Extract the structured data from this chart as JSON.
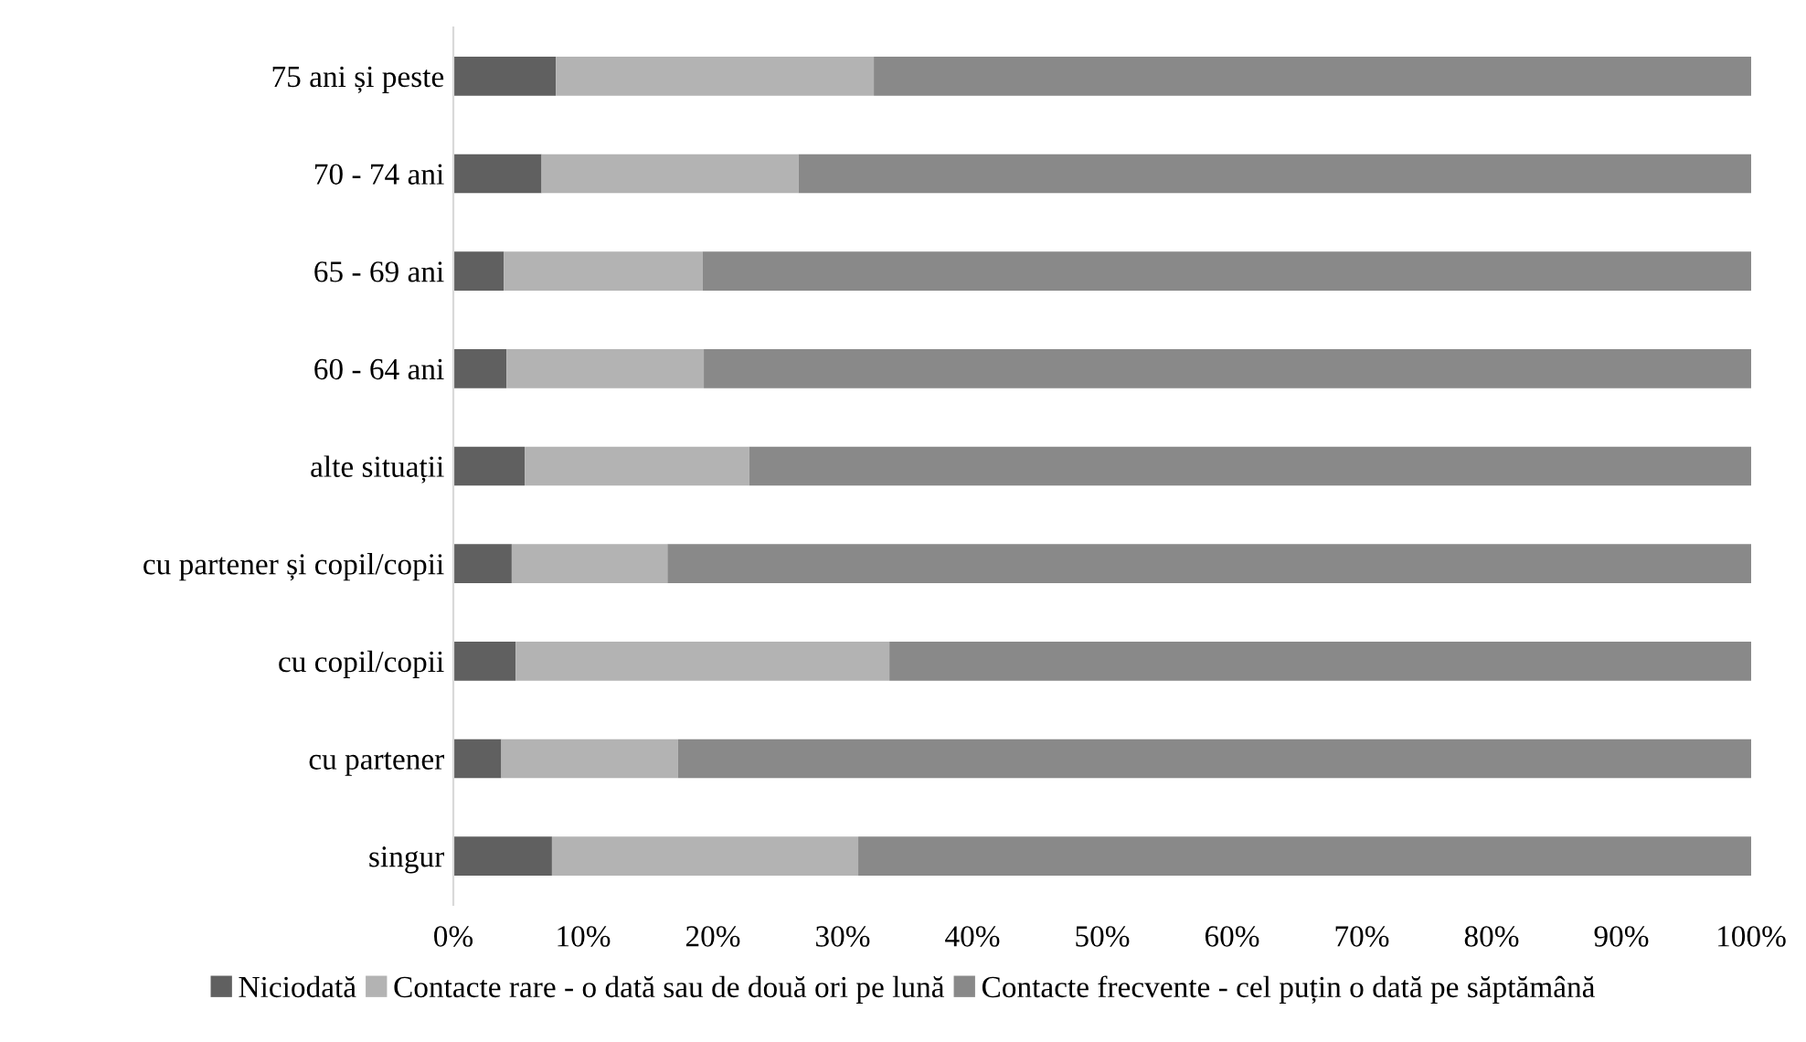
{
  "chart_data": {
    "type": "bar",
    "orientation": "horizontal",
    "stacked": true,
    "categories": [
      "75 ani și peste",
      "70 - 74 ani",
      "65 - 69 ani",
      "60 - 64 ani",
      "alte situații",
      "cu partener și copil/copii",
      "cu copil/copii",
      "cu partener",
      "singur"
    ],
    "series": [
      {
        "name": "Niciodată",
        "color": "#606060",
        "values": [
          7.9,
          6.8,
          3.9,
          4.1,
          5.5,
          4.5,
          4.8,
          3.7,
          7.6
        ]
      },
      {
        "name": "Contacte rare - o dată sau de două ori pe lună",
        "color": "#b3b3b3",
        "values": [
          24.5,
          19.8,
          15.3,
          15.2,
          17.3,
          12.0,
          28.8,
          13.6,
          23.6
        ]
      },
      {
        "name": "Contacte frecvente - cel puțin o dată pe săptămână",
        "color": "#898989",
        "values": [
          67.6,
          73.4,
          80.8,
          80.7,
          77.2,
          83.5,
          66.4,
          82.7,
          68.8
        ]
      }
    ],
    "xlim": [
      0,
      100
    ],
    "xticks": [
      {
        "value": 0,
        "label": "0%"
      },
      {
        "value": 10,
        "label": "10%"
      },
      {
        "value": 20,
        "label": "20%"
      },
      {
        "value": 30,
        "label": "30%"
      },
      {
        "value": 40,
        "label": "40%"
      },
      {
        "value": 50,
        "label": "50%"
      },
      {
        "value": 60,
        "label": "60%"
      },
      {
        "value": 70,
        "label": "70%"
      },
      {
        "value": 80,
        "label": "80%"
      },
      {
        "value": 90,
        "label": "90%"
      },
      {
        "value": 100,
        "label": "100%"
      }
    ],
    "grid": false,
    "legend": "bottom"
  }
}
